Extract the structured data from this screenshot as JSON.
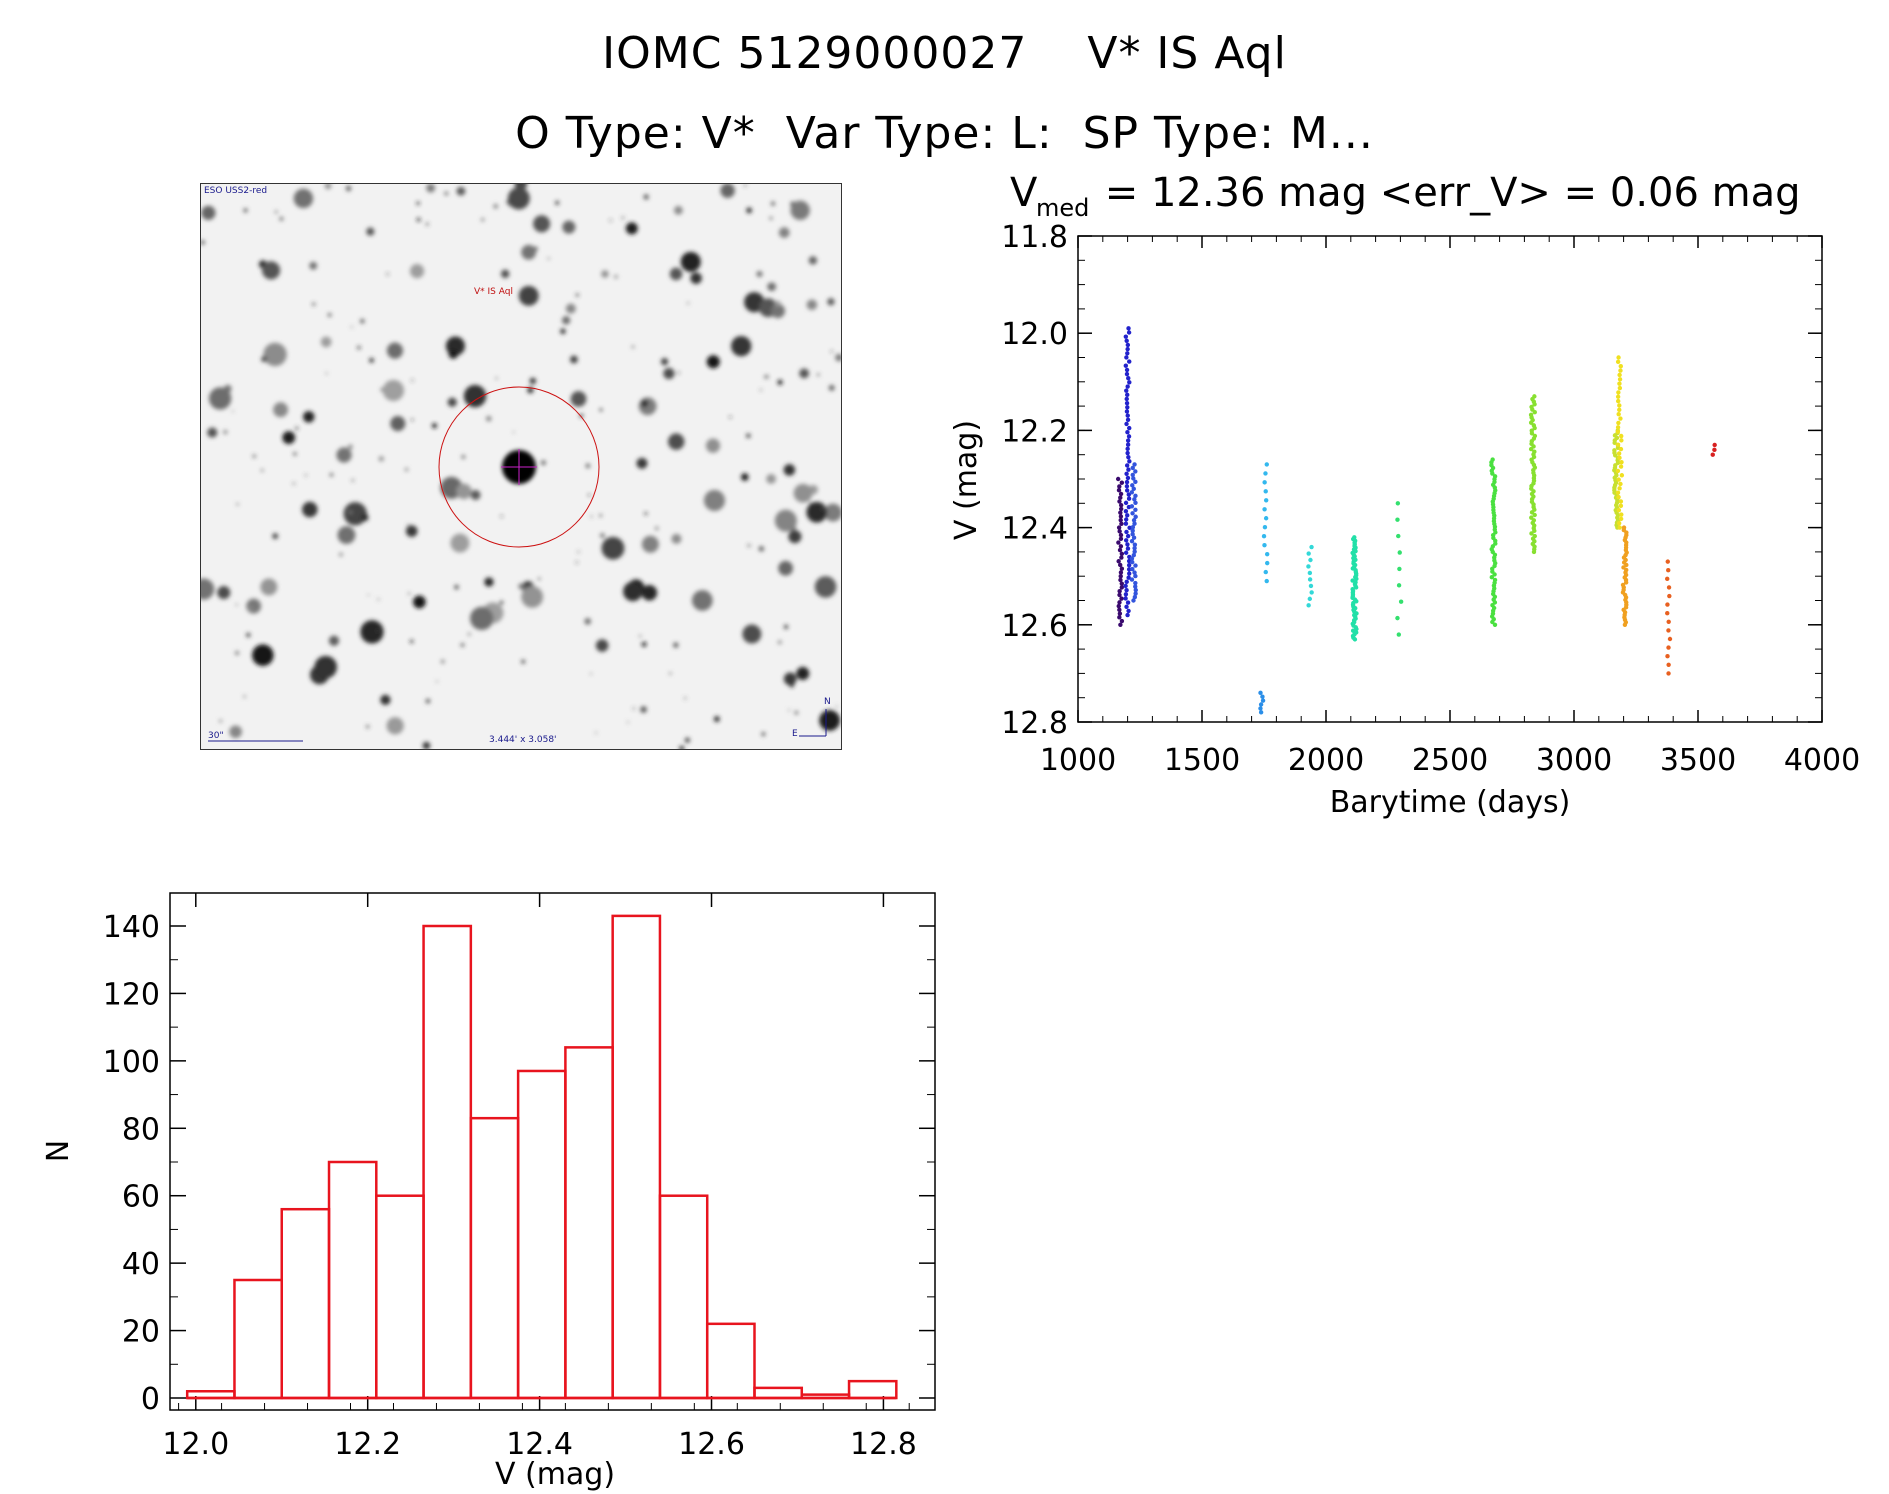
{
  "title_line1": "IOMC 5129000027    V* IS Aql",
  "title_line2": "O Type: V*  Var Type: L:  SP Type: M...",
  "image_panel": {
    "survey_label": "ESO USS2-red",
    "target_label": "V* IS Aql",
    "scale_label": "30\"",
    "fov_label": "3.444' x 3.058'",
    "north_label": "N",
    "east_label": "E"
  },
  "chart_data": [
    {
      "type": "scatter",
      "name": "light-curve",
      "title_main": "V",
      "title_sub": "med",
      "title_rest": " = 12.36 mag <err_V> = 0.06 mag",
      "xlabel": "Barytime (days)",
      "ylabel": "V (mag)",
      "xlim": [
        1000,
        4000
      ],
      "ylim": [
        12.8,
        11.8
      ],
      "xticks": [
        1000,
        1500,
        2000,
        2500,
        3000,
        3500,
        4000
      ],
      "xtick_labels": [
        "1000",
        "1500",
        "2000",
        "2500",
        "3000",
        "3500",
        "4000"
      ],
      "yticks": [
        11.8,
        12.0,
        12.2,
        12.4,
        12.6,
        12.8
      ],
      "ytick_labels": [
        "11.8",
        "12.0",
        "12.2",
        "12.4",
        "12.6",
        "12.8"
      ],
      "series": [
        {
          "name": "group-1",
          "color": "#3a0a6e",
          "x": 1170,
          "y_from": 12.3,
          "y_to": 12.6,
          "n": 40
        },
        {
          "name": "group-2",
          "color": "#2222cc",
          "x": 1200,
          "y_from": 11.99,
          "y_to": 12.58,
          "n": 70
        },
        {
          "name": "group-3",
          "color": "#3355dd",
          "x": 1225,
          "y_from": 12.27,
          "y_to": 12.55,
          "n": 40
        },
        {
          "name": "group-4",
          "color": "#2a8ee8",
          "x": 1740,
          "y_from": 12.74,
          "y_to": 12.78,
          "n": 6
        },
        {
          "name": "group-5",
          "color": "#33b8ee",
          "x": 1755,
          "y_from": 12.27,
          "y_to": 12.51,
          "n": 14
        },
        {
          "name": "group-6",
          "color": "#33d8d8",
          "x": 1935,
          "y_from": 12.44,
          "y_to": 12.56,
          "n": 10
        },
        {
          "name": "group-7",
          "color": "#22e0a8",
          "x": 2115,
          "y_from": 12.42,
          "y_to": 12.63,
          "n": 60
        },
        {
          "name": "group-8",
          "color": "#33e06e",
          "x": 2295,
          "y_from": 12.35,
          "y_to": 12.62,
          "n": 9
        },
        {
          "name": "group-9",
          "color": "#4ae040",
          "x": 2675,
          "y_from": 12.26,
          "y_to": 12.6,
          "n": 60
        },
        {
          "name": "group-10",
          "color": "#88e030",
          "x": 2835,
          "y_from": 12.13,
          "y_to": 12.45,
          "n": 60
        },
        {
          "name": "group-11",
          "color": "#c8e030",
          "x": 3170,
          "y_from": 12.2,
          "y_to": 12.4,
          "n": 40
        },
        {
          "name": "group-12",
          "color": "#f0e020",
          "x": 3185,
          "y_from": 12.05,
          "y_to": 12.4,
          "n": 40
        },
        {
          "name": "group-13",
          "color": "#f0a020",
          "x": 3205,
          "y_from": 12.4,
          "y_to": 12.6,
          "n": 40
        },
        {
          "name": "group-14",
          "color": "#e86020",
          "x": 3380,
          "y_from": 12.47,
          "y_to": 12.7,
          "n": 14
        },
        {
          "name": "group-15",
          "color": "#d82020",
          "x": 3565,
          "y_from": 12.23,
          "y_to": 12.25,
          "n": 3
        }
      ]
    },
    {
      "type": "bar",
      "name": "histogram",
      "xlabel": "V (mag)",
      "ylabel": "N",
      "color": "#e8141e",
      "xlim": [
        11.97,
        12.86
      ],
      "ylim": [
        0,
        150
      ],
      "bin_edges": [
        11.99,
        12.045,
        12.1,
        12.155,
        12.21,
        12.265,
        12.32,
        12.375,
        12.43,
        12.485,
        12.54,
        12.595,
        12.65,
        12.705,
        12.76,
        12.815
      ],
      "values": [
        2,
        35,
        56,
        70,
        60,
        140,
        83,
        97,
        104,
        143,
        60,
        22,
        3,
        1,
        5
      ],
      "xticks": [
        12.0,
        12.2,
        12.4,
        12.6,
        12.8
      ],
      "xtick_labels": [
        "12.0",
        "12.2",
        "12.4",
        "12.6",
        "12.8"
      ],
      "yticks": [
        0,
        20,
        40,
        60,
        80,
        100,
        120,
        140
      ],
      "ytick_labels": [
        "0",
        "20",
        "40",
        "60",
        "80",
        "100",
        "120",
        "140"
      ]
    }
  ]
}
